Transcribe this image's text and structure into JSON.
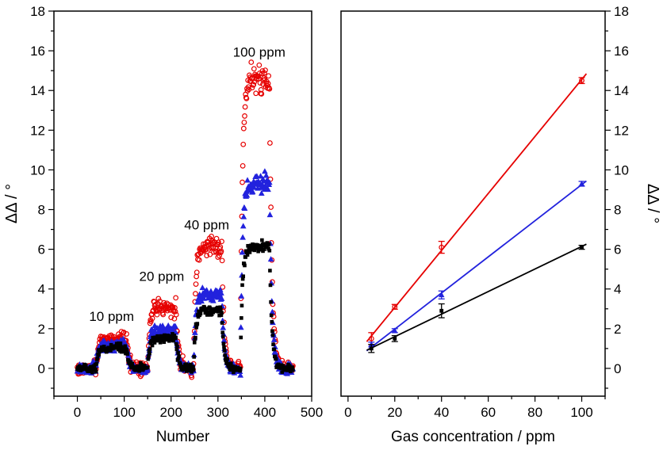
{
  "figure": {
    "background": "#ffffff",
    "description": "Two-panel sensor response figure: raw response pulses vs measurement number (left) and calibration curves vs gas concentration (right)"
  },
  "colors": {
    "series_red": "#e60000",
    "series_blue": "#2222dd",
    "series_black": "#000000",
    "axis": "#000000"
  },
  "chart_data": [
    {
      "type": "scatter",
      "panel": "left",
      "title": "",
      "xlabel": "Number",
      "ylabel": "ΔΔ / °",
      "xlim": [
        -50,
        500
      ],
      "ylim": [
        -1.4,
        18
      ],
      "xticks": [
        0,
        100,
        200,
        300,
        400,
        500
      ],
      "yticks": [
        0,
        2,
        4,
        6,
        8,
        10,
        12,
        14,
        16,
        18
      ],
      "x_minor_step": 50,
      "y_minor_step": 1,
      "grid": false,
      "n_max": 460,
      "baseline": 0,
      "annotations": [
        {
          "text": "10 ppm",
          "x": 73,
          "y": 2.4
        },
        {
          "text": "20 ppm",
          "x": 180,
          "y": 4.4
        },
        {
          "text": "40 ppm",
          "x": 276,
          "y": 7.0
        },
        {
          "text": "100 ppm",
          "x": 388,
          "y": 15.7
        }
      ],
      "pulses": [
        {
          "concentration_ppm": 10,
          "start": 40,
          "end": 105
        },
        {
          "concentration_ppm": 20,
          "start": 150,
          "end": 210
        },
        {
          "concentration_ppm": 40,
          "start": 248,
          "end": 308
        },
        {
          "concentration_ppm": 100,
          "start": 348,
          "end": 410
        }
      ],
      "series": [
        {
          "name": "series-red",
          "color": "#e60000",
          "marker": "circle-open",
          "marker_size": 5.6,
          "noise": 0.16,
          "plateaus": [
            1.5,
            3.1,
            6.1,
            14.5
          ]
        },
        {
          "name": "series-blue",
          "color": "#2222dd",
          "marker": "triangle-filled",
          "marker_size": 6.6,
          "noise": 0.13,
          "plateaus": [
            1.2,
            1.9,
            3.7,
            9.3
          ]
        },
        {
          "name": "series-black",
          "color": "#000000",
          "marker": "square-filled",
          "marker_size": 4.6,
          "noise": 0.09,
          "plateaus": [
            1.0,
            1.5,
            2.9,
            6.1
          ]
        }
      ]
    },
    {
      "type": "line",
      "panel": "right",
      "title": "",
      "xlabel": "Gas concentration / ppm",
      "ylabel": "ΔΔ / °",
      "y_axis_side": "right",
      "xlim": [
        -3,
        110
      ],
      "ylim": [
        -1.4,
        18
      ],
      "xticks": [
        0,
        20,
        40,
        60,
        80,
        100
      ],
      "yticks": [
        0,
        2,
        4,
        6,
        8,
        10,
        12,
        14,
        16,
        18
      ],
      "x_minor_step": 10,
      "y_minor_step": 1,
      "grid": false,
      "x": [
        10,
        20,
        40,
        100
      ],
      "fit_x_range": [
        8,
        102
      ],
      "series": [
        {
          "name": "series-red",
          "color": "#e60000",
          "marker": "circle-open",
          "marker_size": 5.6,
          "values": [
            1.5,
            3.1,
            6.1,
            14.5
          ],
          "errors": [
            0.3,
            0.12,
            0.3,
            0.15
          ]
        },
        {
          "name": "series-blue",
          "color": "#2222dd",
          "marker": "triangle-filled",
          "marker_size": 6.4,
          "values": [
            1.2,
            1.9,
            3.7,
            9.3
          ],
          "errors": [
            0.12,
            0.1,
            0.2,
            0.12
          ]
        },
        {
          "name": "series-black",
          "color": "#000000",
          "marker": "square-filled",
          "marker_size": 4.8,
          "values": [
            1.0,
            1.5,
            2.9,
            6.1
          ],
          "errors": [
            0.2,
            0.15,
            0.35,
            0.1
          ]
        }
      ]
    }
  ]
}
